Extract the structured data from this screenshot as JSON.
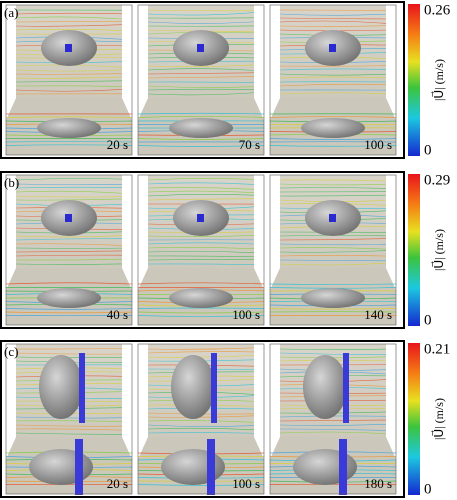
{
  "panels": [
    {
      "label": "(a)",
      "times": [
        "20 s",
        "70 s",
        "100 s"
      ],
      "colorbar": {
        "max": 0.26,
        "min": 0,
        "unit": "|U⃗| (m/s)"
      }
    },
    {
      "label": "(b)",
      "times": [
        "40 s",
        "100 s",
        "140 s"
      ],
      "colorbar": {
        "max": 0.29,
        "min": 0,
        "unit": "|U⃗| (m/s)"
      }
    },
    {
      "label": "(c)",
      "times": [
        "20 s",
        "100 s",
        "180 s"
      ],
      "colorbar": {
        "max": 0.21,
        "min": 0,
        "unit": "|U⃗| (m/s)"
      }
    }
  ]
}
